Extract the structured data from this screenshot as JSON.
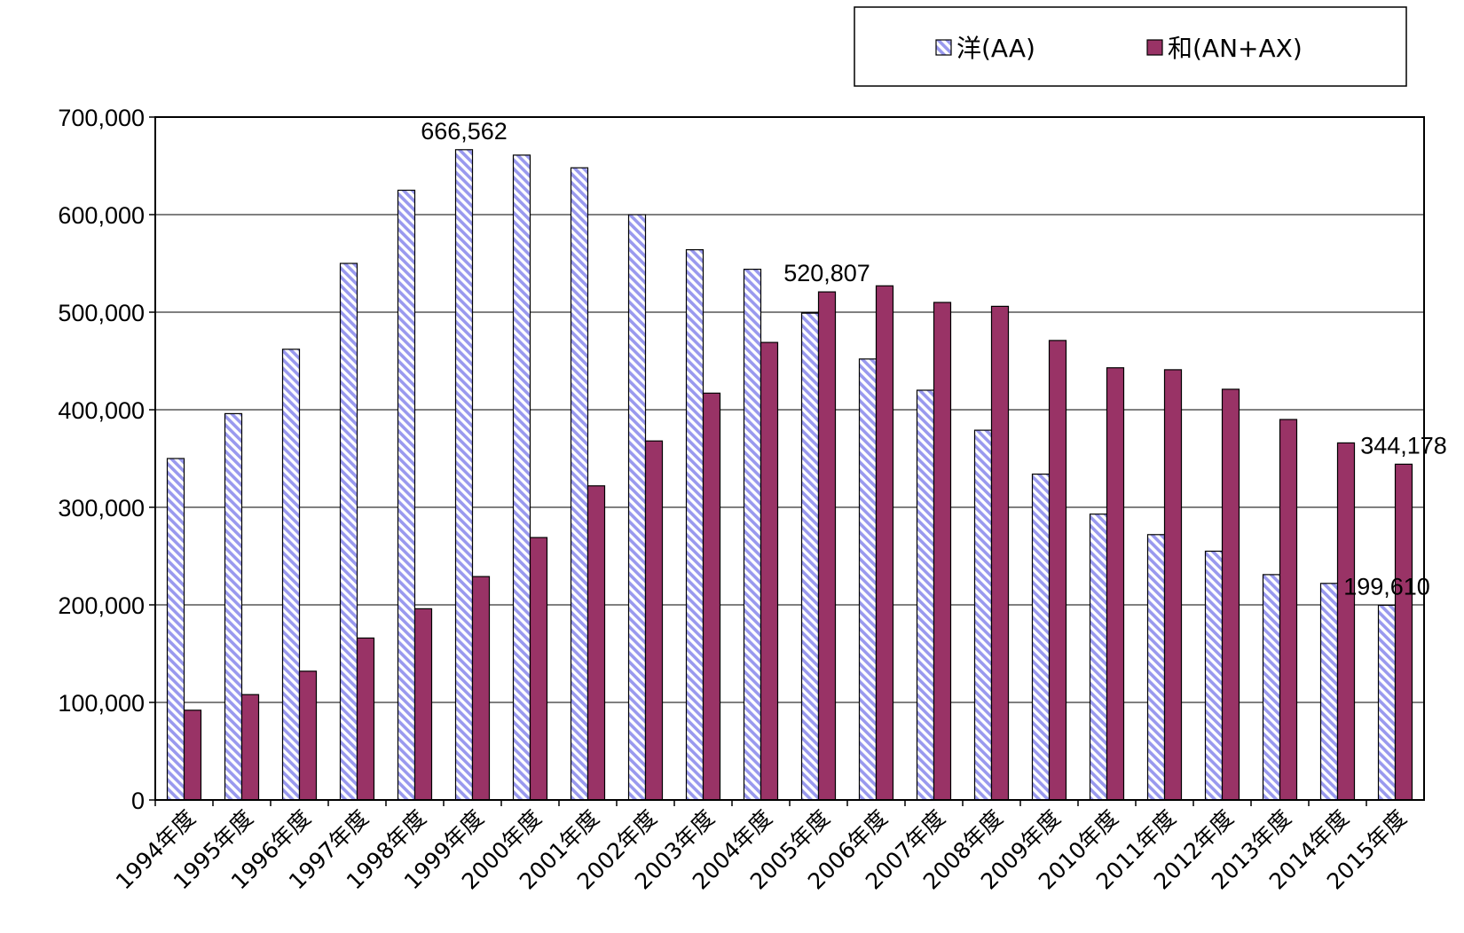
{
  "chart_data": {
    "type": "bar",
    "title": "",
    "xlabel": "",
    "ylabel": "",
    "ylim": [
      0,
      700000
    ],
    "yticks": [
      0,
      100000,
      200000,
      300000,
      400000,
      500000,
      600000,
      700000
    ],
    "ytick_labels": [
      "0",
      "100,000",
      "200,000",
      "300,000",
      "400,000",
      "500,000",
      "600,000",
      "700,000"
    ],
    "grid": "horizontal",
    "legend_position": "top-right",
    "categories": [
      "1994年度",
      "1995年度",
      "1996年度",
      "1997年度",
      "1998年度",
      "1999年度",
      "2000年度",
      "2001年度",
      "2002年度",
      "2003年度",
      "2004年度",
      "2005年度",
      "2006年度",
      "2007年度",
      "2008年度",
      "2009年度",
      "2010年度",
      "2011年度",
      "2012年度",
      "2013年度",
      "2014年度",
      "2015年度"
    ],
    "series": [
      {
        "name": "洋(AA)",
        "color": "#9999ee",
        "pattern": "diagonal-hatch",
        "values": [
          350000,
          396000,
          462000,
          550000,
          625000,
          666562,
          661000,
          648000,
          600000,
          564000,
          544000,
          499000,
          452000,
          420000,
          379000,
          334000,
          293000,
          272000,
          255000,
          231000,
          222000,
          199610
        ]
      },
      {
        "name": "和(AN+AX)",
        "color": "#993366",
        "pattern": "solid",
        "values": [
          92000,
          108000,
          132000,
          166000,
          196000,
          229000,
          269000,
          322000,
          368000,
          417000,
          469000,
          520807,
          527000,
          510000,
          506000,
          471000,
          443000,
          441000,
          421000,
          390000,
          366000,
          344178
        ]
      }
    ],
    "annotations": [
      {
        "text": "666,562",
        "series": 0,
        "index": 5
      },
      {
        "text": "520,807",
        "series": 1,
        "index": 11
      },
      {
        "text": "199,610",
        "series": 0,
        "index": 21
      },
      {
        "text": "344,178",
        "series": 1,
        "index": 21
      }
    ]
  }
}
